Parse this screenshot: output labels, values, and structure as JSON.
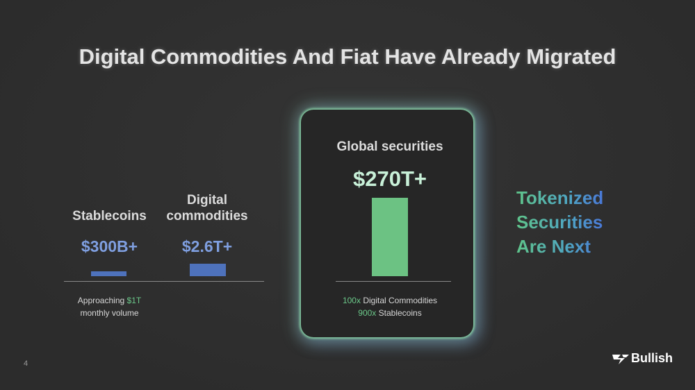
{
  "title": "Digital Commodities And Fiat Have Already Migrated",
  "items": [
    {
      "label": "Stablecoins",
      "value": "$300B+",
      "note": {
        "prefix": "Approaching",
        "highlight": "$1T",
        "suffix": "monthly volume"
      }
    },
    {
      "label": "Digital commodities",
      "value": "$2.6T+"
    },
    {
      "label": "Global securities",
      "value": "$270T+",
      "notes": [
        {
          "multiple": "100x",
          "text": "Digital Commodities"
        },
        {
          "multiple": "900x",
          "text": "Stablecoins"
        }
      ]
    }
  ],
  "callout": [
    "Tokenized",
    "Securities",
    "Are Next"
  ],
  "page_number": "4",
  "logo": "Bullish"
}
